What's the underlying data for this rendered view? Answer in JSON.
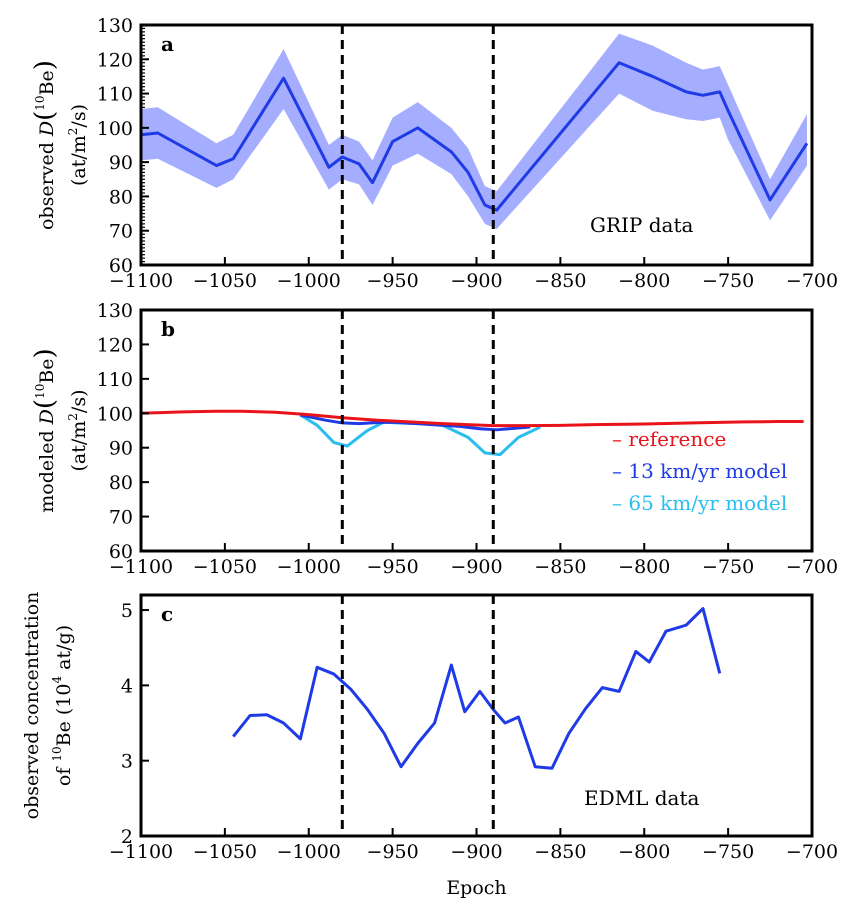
{
  "chart_data": [
    {
      "panel": "a",
      "type": "line",
      "annotation": "GRIP data",
      "ylabel_parts": [
        "observed ",
        "D",
        "(",
        "10",
        "Be",
        ")",
        "(at/m",
        "2",
        "/s)"
      ],
      "xlim": [
        -1100,
        -700
      ],
      "ylim": [
        60,
        130
      ],
      "xticks": [
        -1100,
        -1050,
        -1000,
        -950,
        -900,
        -850,
        -800,
        -750,
        -700
      ],
      "yticks": [
        60,
        70,
        80,
        90,
        100,
        110,
        120,
        130
      ],
      "dashed_x": [
        -980,
        -890
      ],
      "series": [
        {
          "color": "#1f3be6",
          "band_color": "#a5adff",
          "x": [
            -1100,
            -1090,
            -1055,
            -1045,
            -1015,
            -988,
            -980,
            -970,
            -962,
            -950,
            -935,
            -915,
            -905,
            -895,
            -888,
            -815,
            -795,
            -775,
            -765,
            -755,
            -750,
            -725,
            -703
          ],
          "y": [
            98,
            98.5,
            89,
            91,
            114.5,
            88.5,
            91.5,
            89.5,
            84,
            96,
            100,
            93,
            87,
            77.5,
            76,
            119,
            115,
            110.5,
            109.5,
            110.5,
            105,
            79,
            95.5
          ],
          "lower": [
            90.5,
            91,
            82.5,
            85,
            105.5,
            82,
            85,
            83.5,
            77.5,
            89,
            92.5,
            86.5,
            80,
            72,
            70.5,
            110,
            105,
            102.5,
            102,
            103,
            96.5,
            73,
            89
          ],
          "upper": [
            105.5,
            106,
            95.5,
            98,
            123,
            95,
            98,
            96,
            90.5,
            103,
            107.5,
            100,
            94,
            83,
            81.5,
            127.5,
            124,
            119,
            117,
            118,
            112.5,
            85,
            104
          ]
        }
      ]
    },
    {
      "panel": "b",
      "type": "line",
      "ylabel_parts": [
        "modeled ",
        "D",
        "(",
        "10",
        "Be",
        ")",
        "(at/m",
        "2",
        "/s)"
      ],
      "xlim": [
        -1100,
        -700
      ],
      "ylim": [
        60,
        130
      ],
      "xticks": [
        -1100,
        -1050,
        -1000,
        -950,
        -900,
        -850,
        -800,
        -750,
        -700
      ],
      "yticks": [
        60,
        70,
        80,
        90,
        100,
        110,
        120,
        130
      ],
      "dashed_x": [
        -980,
        -890
      ],
      "legend_entries": [
        "– reference",
        "– 13 km/yr model",
        "– 65 km/yr model"
      ],
      "series": [
        {
          "color": "#29bdf0",
          "x": [
            -1005,
            -995,
            -985,
            -977,
            -965,
            -955,
            -948,
            -935,
            -920,
            -905,
            -895,
            -886,
            -875,
            -862
          ],
          "y": [
            99.5,
            96.5,
            91.5,
            90.5,
            95,
            97.5,
            97.2,
            97,
            96.5,
            93,
            88.5,
            88,
            93,
            96
          ]
        },
        {
          "color": "#1f3be6",
          "x": [
            -1005,
            -990,
            -980,
            -970,
            -960,
            -950,
            -935,
            -910,
            -898,
            -888,
            -878,
            -868
          ],
          "y": [
            99.5,
            98,
            97.2,
            97,
            97.3,
            97.4,
            97,
            96.2,
            95.5,
            95.2,
            95.6,
            96
          ]
        },
        {
          "color": "#e8141a",
          "x": [
            -1100,
            -1075,
            -1055,
            -1040,
            -1020,
            -1000,
            -980,
            -960,
            -940,
            -920,
            -900,
            -890,
            -870,
            -850,
            -830,
            -800,
            -770,
            -740,
            -720,
            -705
          ],
          "y": [
            100,
            100.4,
            100.6,
            100.6,
            100.3,
            99.6,
            98.7,
            98,
            97.5,
            97,
            96.6,
            96.4,
            96.4,
            96.5,
            96.7,
            96.9,
            97.2,
            97.5,
            97.6,
            97.6
          ]
        }
      ]
    },
    {
      "panel": "c",
      "type": "line",
      "annotation": "EDML data",
      "xlabel": "Epoch",
      "ylabel_parts": [
        "observed concentration",
        "of ",
        "10",
        "Be (10",
        "4",
        " at/g)"
      ],
      "xlim": [
        -1100,
        -700
      ],
      "ylim": [
        2,
        5.2
      ],
      "xticks": [
        -1100,
        -1050,
        -1000,
        -950,
        -900,
        -850,
        -800,
        -750,
        -700
      ],
      "yticks": [
        2,
        3,
        4,
        5
      ],
      "dashed_x": [
        -980,
        -890
      ],
      "series": [
        {
          "color": "#1f3be6",
          "x": [
            -1045,
            -1035,
            -1025,
            -1015,
            -1005,
            -995,
            -985,
            -975,
            -965,
            -955,
            -945,
            -935,
            -925,
            -915,
            -907,
            -898,
            -890,
            -883,
            -875,
            -865,
            -855,
            -845,
            -835,
            -825,
            -815,
            -805,
            -797,
            -787,
            -775,
            -765,
            -755
          ],
          "y": [
            3.32,
            3.6,
            3.61,
            3.5,
            3.29,
            4.24,
            4.15,
            3.95,
            3.68,
            3.36,
            2.92,
            3.23,
            3.5,
            4.27,
            3.65,
            3.92,
            3.68,
            3.5,
            3.58,
            2.92,
            2.9,
            3.36,
            3.69,
            3.97,
            3.92,
            4.45,
            4.31,
            4.72,
            4.8,
            5.02,
            4.16
          ]
        }
      ]
    }
  ]
}
